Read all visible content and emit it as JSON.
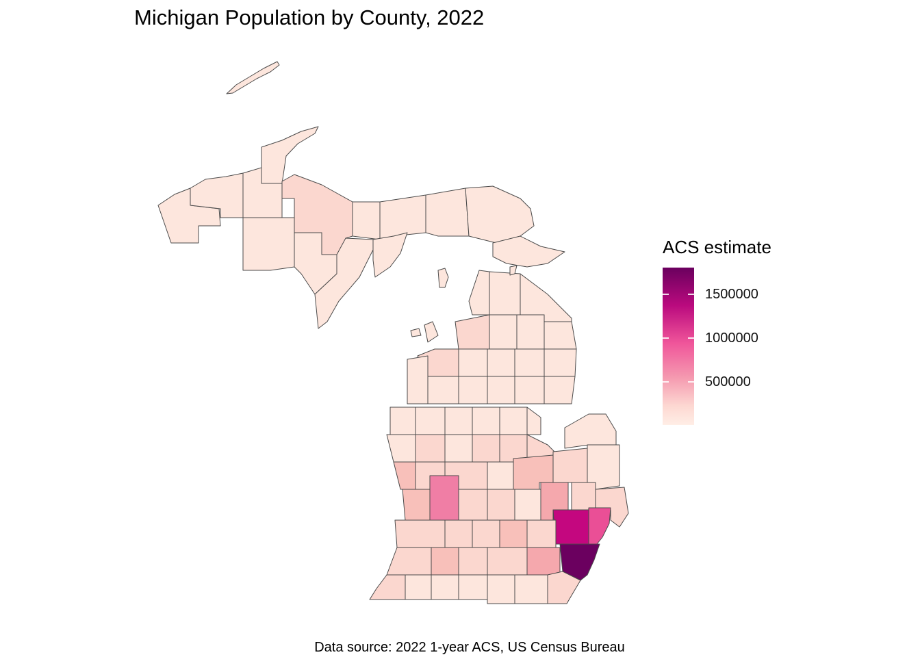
{
  "title": "Michigan Population by County, 2022",
  "caption": "Data source: 2022 1-year ACS, US Census Bureau",
  "legend": {
    "title": "ACS estimate",
    "breaks": [
      {
        "label": "1500000",
        "value": 1500000
      },
      {
        "label": "1000000",
        "value": 1000000
      },
      {
        "label": "500000",
        "value": 500000
      }
    ],
    "range": [
      0,
      1800000
    ],
    "colors": [
      "#ffeee6",
      "#fdd8d2",
      "#f59ab0",
      "#f0559a",
      "#ba0a7e",
      "#6a005e"
    ]
  },
  "map": {
    "region": "Michigan",
    "fill_colors": {
      "very_low": "#fde6dd",
      "low": "#fbd7cf",
      "medium_low": "#f8c0ba",
      "medium": "#f5a8ad",
      "medium_high": "#f07ea5",
      "high": "#ea4f96",
      "very_high": "#c4077f",
      "max": "#6b005f"
    },
    "stroke_color": "#4a4a4a"
  }
}
